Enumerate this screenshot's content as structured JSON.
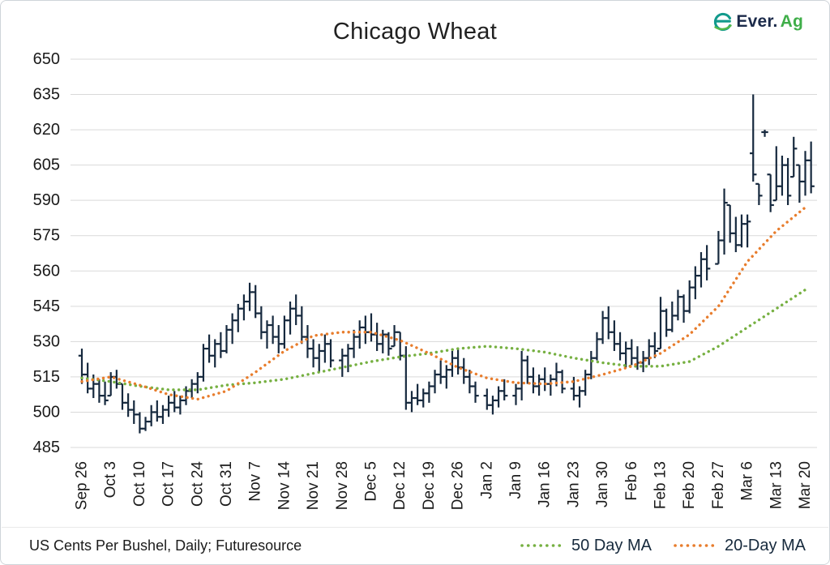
{
  "logo": {
    "brand_primary": "Ever.",
    "brand_secondary": "Ag"
  },
  "chart_data": {
    "type": "ohlc_bar_with_moving_averages",
    "title": "Chicago Wheat",
    "source_note": "US Cents Per Bushel, Daily; Futuresource",
    "legend_position": "bottom-right",
    "grid": "horizontal",
    "colors": {
      "bar": "#16293e",
      "ma50": "#76b041",
      "ma20": "#e87d2d",
      "grid": "#d9d9d9",
      "axis_text": "#1a1a1a"
    },
    "y_axis": {
      "min": 485,
      "max": 650,
      "step": 15,
      "ticks": [
        650,
        635,
        620,
        605,
        590,
        575,
        560,
        545,
        530,
        515,
        500,
        485
      ]
    },
    "weeks": [
      {
        "label": "Sep 26",
        "bars": [
          [
            527,
            512,
            516,
            524
          ],
          [
            521,
            508,
            510
          ],
          [
            516,
            506,
            512
          ],
          [
            514,
            504,
            507
          ],
          [
            513,
            503,
            505
          ]
        ]
      },
      {
        "label": "Oct 3",
        "bars": [
          [
            517,
            507,
            515
          ],
          [
            518,
            510,
            512
          ],
          [
            512,
            501,
            504
          ],
          [
            508,
            498,
            501
          ],
          [
            505,
            495,
            499
          ]
        ]
      },
      {
        "label": "Oct 10",
        "bars": [
          [
            500,
            491,
            493
          ],
          [
            498,
            492,
            496
          ],
          [
            503,
            494,
            500
          ],
          [
            505,
            496,
            498
          ],
          [
            503,
            495,
            501
          ]
        ]
      },
      {
        "label": "Oct 17",
        "bars": [
          [
            507,
            498,
            504
          ],
          [
            509,
            500,
            502
          ],
          [
            507,
            499,
            505
          ],
          [
            511,
            503,
            509
          ],
          [
            514,
            506,
            512
          ]
        ]
      },
      {
        "label": "Oct 24",
        "bars": [
          [
            517,
            508,
            515
          ],
          [
            529,
            513,
            527
          ],
          [
            533,
            521,
            524
          ],
          [
            531,
            519,
            529
          ],
          [
            534,
            523,
            526
          ]
        ]
      },
      {
        "label": "Oct 31",
        "bars": [
          [
            537,
            525,
            535
          ],
          [
            542,
            529,
            539
          ],
          [
            546,
            534,
            544
          ],
          [
            550,
            539,
            547
          ],
          [
            555,
            543,
            551
          ]
        ]
      },
      {
        "label": "Nov 7",
        "bars": [
          [
            554,
            540,
            542
          ],
          [
            545,
            531,
            534
          ],
          [
            539,
            527,
            537
          ],
          [
            541,
            529,
            532
          ],
          [
            537,
            525,
            529
          ]
        ]
      },
      {
        "label": "Nov 14",
        "bars": [
          [
            541,
            527,
            539
          ],
          [
            547,
            533,
            544
          ],
          [
            550,
            537,
            541
          ],
          [
            545,
            529,
            532
          ],
          [
            537,
            523,
            527
          ]
        ]
      },
      {
        "label": "Nov 21",
        "bars": [
          [
            531,
            519,
            523
          ],
          [
            529,
            517,
            526
          ],
          [
            533,
            521,
            529
          ],
          [
            531,
            519,
            522
          ]
        ]
      },
      {
        "label": "Nov 28",
        "bars": [
          [
            527,
            515,
            524
          ],
          [
            529,
            517,
            527
          ],
          [
            535,
            523,
            532
          ],
          [
            539,
            527,
            536
          ],
          [
            541,
            529,
            534
          ]
        ]
      },
      {
        "label": "Dec 5",
        "bars": [
          [
            542,
            530,
            533
          ],
          [
            538,
            526,
            529
          ],
          [
            535,
            525,
            533
          ],
          [
            534,
            524,
            527
          ],
          [
            537,
            528,
            534
          ]
        ]
      },
      {
        "label": "Dec 12",
        "bars": [
          [
            534,
            522,
            524
          ],
          [
            528,
            501,
            504
          ],
          [
            509,
            500,
            506
          ],
          [
            512,
            503,
            505
          ],
          [
            510,
            502,
            508
          ]
        ]
      },
      {
        "label": "Dec 19",
        "bars": [
          [
            513,
            504,
            511
          ],
          [
            518,
            508,
            516
          ],
          [
            522,
            512,
            515
          ],
          [
            520,
            510,
            518
          ],
          [
            526,
            515,
            523
          ]
        ]
      },
      {
        "label": "Dec 26",
        "bars": [
          [
            527,
            516,
            519
          ],
          [
            523,
            512,
            515
          ],
          [
            518,
            508,
            511
          ],
          [
            513,
            504,
            507
          ]
        ]
      },
      {
        "label": "Jan 2",
        "bars": [
          [
            510,
            501,
            503
          ],
          [
            507,
            499,
            505
          ],
          [
            511,
            502,
            509
          ],
          [
            514,
            505,
            507
          ]
        ]
      },
      {
        "label": "Jan 9",
        "bars": [
          [
            512,
            503,
            510
          ],
          [
            526,
            505,
            522
          ],
          [
            524,
            512,
            515
          ],
          [
            519,
            508,
            511
          ],
          [
            516,
            507,
            514
          ]
        ]
      },
      {
        "label": "Jan 16",
        "bars": [
          [
            519,
            509,
            512
          ],
          [
            516,
            507,
            514
          ],
          [
            521,
            511,
            517
          ],
          [
            518,
            508,
            510
          ]
        ]
      },
      {
        "label": "Jan 23",
        "bars": [
          [
            515,
            505,
            507
          ],
          [
            511,
            502,
            509
          ],
          [
            518,
            507,
            516
          ],
          [
            526,
            514,
            523
          ],
          [
            534,
            522,
            531
          ]
        ]
      },
      {
        "label": "Jan 30",
        "bars": [
          [
            543,
            529,
            540
          ],
          [
            545,
            531,
            534
          ],
          [
            539,
            526,
            529
          ],
          [
            534,
            522,
            525
          ],
          [
            530,
            519,
            527
          ]
        ]
      },
      {
        "label": "Feb 6",
        "bars": [
          [
            531,
            520,
            523
          ],
          [
            528,
            518,
            521
          ],
          [
            526,
            517,
            523
          ],
          [
            531,
            520,
            528
          ],
          [
            534,
            523,
            526
          ]
        ]
      },
      {
        "label": "Feb 13",
        "bars": [
          [
            549,
            527,
            543
          ],
          [
            544,
            532,
            535
          ],
          [
            547,
            534,
            541
          ],
          [
            552,
            539,
            549
          ],
          [
            550,
            538,
            543
          ]
        ]
      },
      {
        "label": "Feb 20",
        "bars": [
          [
            556,
            542,
            553
          ],
          [
            562,
            548,
            558
          ],
          [
            568,
            553,
            565
          ],
          [
            571,
            556,
            561
          ]
        ]
      },
      {
        "label": "Feb 27",
        "bars": [
          [
            577,
            563,
            573
          ],
          [
            595,
            567,
            589
          ],
          [
            588,
            572,
            576
          ],
          [
            583,
            568,
            571
          ],
          [
            584,
            570,
            580
          ]
        ]
      },
      {
        "label": "Mar 6",
        "bars": [
          [
            584,
            570,
            581
          ],
          [
            635,
            598,
            601,
            610
          ],
          [
            597,
            588,
            592
          ],
          [
            620,
            617,
            619,
            619
          ],
          [
            601,
            585,
            588
          ]
        ]
      },
      {
        "label": "Mar 13",
        "bars": [
          [
            613,
            590,
            596
          ],
          [
            609,
            592,
            605
          ],
          [
            608,
            588,
            592
          ],
          [
            617,
            600,
            612
          ],
          [
            605,
            589,
            598
          ]
        ]
      },
      {
        "label": "Mar 20",
        "bars": [
          [
            611,
            592,
            607
          ],
          [
            615,
            593,
            596
          ]
        ]
      }
    ],
    "ma50": {
      "label": "50 Day MA",
      "color": "#76b041",
      "weekly_values": [
        514.5,
        513,
        511,
        509.5,
        509.5,
        511.5,
        512.5,
        514,
        516.5,
        519,
        521.5,
        523.5,
        525,
        527,
        528,
        527,
        525.5,
        523,
        521,
        519.5,
        519.5,
        521.5,
        528,
        536,
        544,
        552
      ]
    },
    "ma20": {
      "label": "20-Day MA",
      "color": "#e87d2d",
      "weekly_values": [
        513,
        515,
        511.5,
        507.5,
        505.5,
        509,
        517,
        526,
        532.5,
        534,
        534,
        530.5,
        525,
        519,
        514.5,
        512.5,
        512,
        513,
        516,
        519.5,
        525,
        533,
        545,
        564,
        577,
        587
      ]
    }
  }
}
